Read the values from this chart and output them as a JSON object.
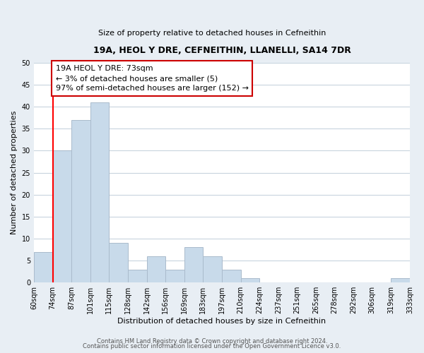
{
  "title": "19A, HEOL Y DRE, CEFNEITHIN, LLANELLI, SA14 7DR",
  "subtitle": "Size of property relative to detached houses in Cefneithin",
  "xlabel": "Distribution of detached houses by size in Cefneithin",
  "ylabel": "Number of detached properties",
  "bin_labels": [
    "60sqm",
    "74sqm",
    "87sqm",
    "101sqm",
    "115sqm",
    "128sqm",
    "142sqm",
    "156sqm",
    "169sqm",
    "183sqm",
    "197sqm",
    "210sqm",
    "224sqm",
    "237sqm",
    "251sqm",
    "265sqm",
    "278sqm",
    "292sqm",
    "306sqm",
    "319sqm",
    "333sqm"
  ],
  "bar_heights": [
    7,
    30,
    37,
    41,
    9,
    3,
    6,
    3,
    8,
    6,
    3,
    1,
    0,
    0,
    0,
    0,
    0,
    0,
    0,
    1
  ],
  "bar_color": "#c8daea",
  "bar_edge_color": "#aabbcc",
  "ylim": [
    0,
    50
  ],
  "yticks": [
    0,
    5,
    10,
    15,
    20,
    25,
    30,
    35,
    40,
    45,
    50
  ],
  "property_line_x": 1.0,
  "property_line_label": "19A HEOL Y DRE: 73sqm",
  "annotation_line1": "← 3% of detached houses are smaller (5)",
  "annotation_line2": "97% of semi-detached houses are larger (152) →",
  "footer1": "Contains HM Land Registry data © Crown copyright and database right 2024.",
  "footer2": "Contains public sector information licensed under the Open Government Licence v3.0.",
  "background_color": "#e8eef4",
  "plot_background_color": "#ffffff",
  "grid_color": "#c8d4de",
  "title_fontsize": 9,
  "subtitle_fontsize": 8,
  "tick_fontsize": 7,
  "axis_label_fontsize": 8,
  "annotation_fontsize": 8,
  "footer_fontsize": 6
}
